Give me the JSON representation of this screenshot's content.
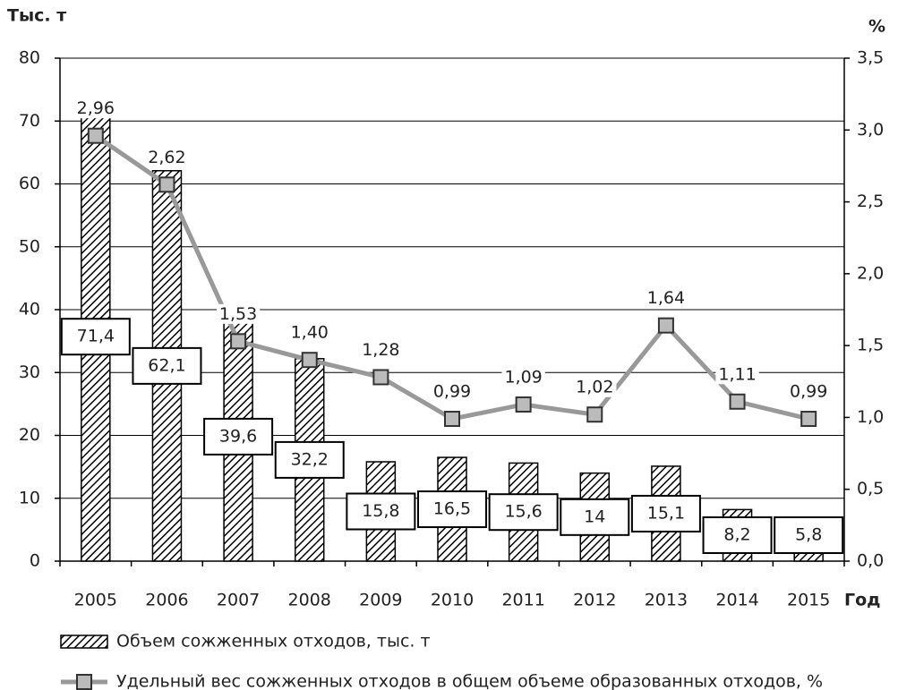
{
  "chart_data": {
    "type": "bar",
    "y_label": "Тыс. т",
    "y2_label": "%",
    "x_label": "Год",
    "categories": [
      "2005",
      "2006",
      "2007",
      "2008",
      "2009",
      "2010",
      "2011",
      "2012",
      "2013",
      "2014",
      "2015"
    ],
    "series": [
      {
        "name": "Объем сожженных отходов, тыс. т",
        "type": "bar",
        "color": "#000000",
        "values": [
          71.4,
          62.1,
          39.6,
          32.2,
          15.8,
          16.5,
          15.6,
          14,
          15.1,
          8.2,
          5.8
        ],
        "value_labels": [
          "71,4",
          "62,1",
          "39,6",
          "32,2",
          "15,8",
          "16,5",
          "15,6",
          "14",
          "15,1",
          "8,2",
          "5,8"
        ]
      },
      {
        "name": "Удельный вес сожженных отходов в общем объеме образованных отходов, %",
        "type": "line",
        "axis": "y2",
        "color": "#999999",
        "values": [
          2.96,
          2.62,
          1.53,
          1.4,
          1.28,
          0.99,
          1.09,
          1.02,
          1.64,
          1.11,
          0.99
        ],
        "value_labels": [
          "2,96",
          "2,62",
          "1,53",
          "1,40",
          "1,28",
          "0,99",
          "1,09",
          "1,02",
          "1,64",
          "1,11",
          "0,99"
        ]
      }
    ],
    "ylim": [
      0,
      80
    ],
    "yticks": [
      0,
      10,
      20,
      30,
      40,
      50,
      60,
      70,
      80
    ],
    "y2lim": [
      0,
      3.5
    ],
    "y2ticks": [
      {
        "value": 0,
        "label": "0,0"
      },
      {
        "value": 0.5,
        "label": "0,5"
      },
      {
        "value": 1,
        "label": "1,0"
      },
      {
        "value": 1.5,
        "label": "1,5"
      },
      {
        "value": 2,
        "label": "2,0"
      },
      {
        "value": 2.5,
        "label": "2,5"
      },
      {
        "value": 3,
        "label": "3,0"
      },
      {
        "value": 3.5,
        "label": "3,5"
      }
    ],
    "grid": true
  }
}
